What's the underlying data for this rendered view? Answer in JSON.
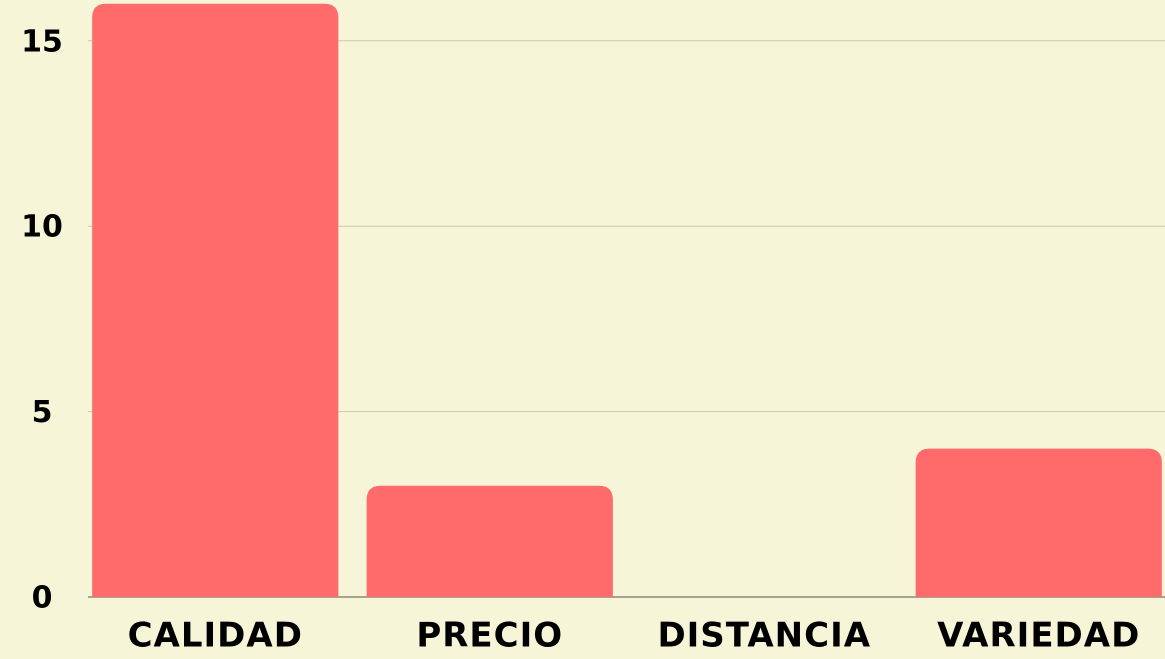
{
  "chart_data": {
    "type": "bar",
    "categories": [
      "CALIDAD",
      "PRECIO",
      "DISTANCIA",
      "VARIEDAD"
    ],
    "values": [
      16,
      3,
      0,
      4
    ],
    "color": "#ff6b6b",
    "ylim": [
      0,
      16.1
    ],
    "yticks": [
      0,
      5,
      10,
      15
    ],
    "grid": true
  }
}
